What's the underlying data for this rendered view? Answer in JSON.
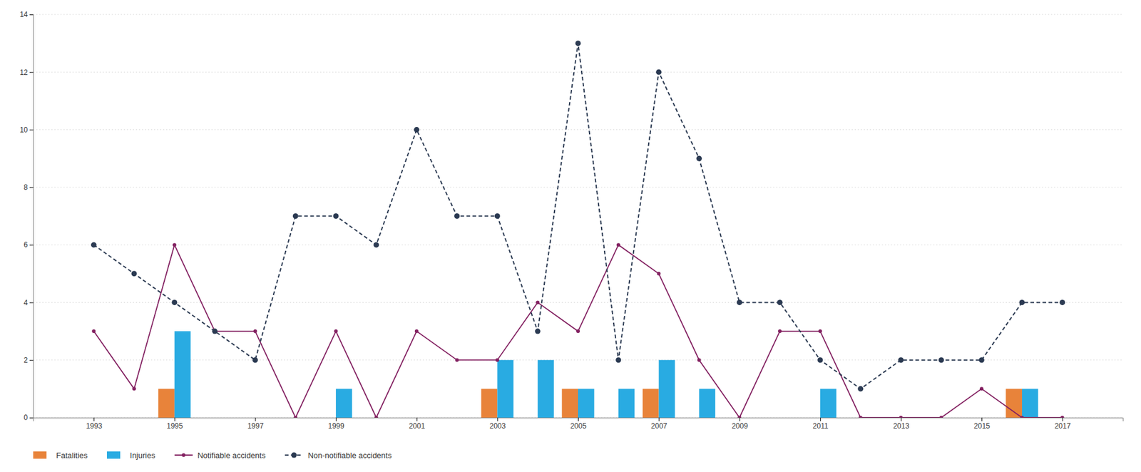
{
  "chart_data": {
    "type": "bar",
    "x": [
      1993,
      1994,
      1995,
      1996,
      1997,
      1998,
      1999,
      2000,
      2001,
      2002,
      2003,
      2004,
      2005,
      2006,
      2007,
      2008,
      2009,
      2010,
      2011,
      2012,
      2013,
      2014,
      2015,
      2016,
      2017
    ],
    "series": [
      {
        "name": "Fatalities",
        "type": "bar",
        "color": "#E8833A",
        "values": [
          0,
          0,
          1,
          0,
          0,
          0,
          0,
          0,
          0,
          0,
          1,
          0,
          1,
          0,
          1,
          0,
          0,
          0,
          0,
          0,
          0,
          0,
          0,
          1,
          0
        ]
      },
      {
        "name": "Injuries",
        "type": "bar",
        "color": "#29ABE2",
        "values": [
          0,
          0,
          3,
          0,
          0,
          0,
          1,
          0,
          0,
          0,
          2,
          2,
          1,
          1,
          2,
          1,
          0,
          0,
          1,
          0,
          0,
          0,
          0,
          1,
          0
        ]
      },
      {
        "name": "Notifiable accidents",
        "type": "line",
        "color": "#832161",
        "marker": "circle",
        "line_style": "solid",
        "values": [
          3,
          1,
          6,
          3,
          3,
          0,
          3,
          0,
          3,
          2,
          2,
          4,
          3,
          6,
          5,
          2,
          0,
          3,
          3,
          0,
          0,
          0,
          1,
          0,
          0
        ]
      },
      {
        "name": "Non-notifiable accidents",
        "type": "line",
        "color": "#2B3A52",
        "marker": "circle",
        "line_style": "dashed",
        "values": [
          6,
          5,
          4,
          3,
          2,
          7,
          7,
          6,
          10,
          7,
          7,
          3,
          13,
          2,
          12,
          9,
          4,
          4,
          2,
          1,
          2,
          2,
          2,
          4,
          4
        ]
      }
    ],
    "xlim": [
      1991.5,
      2018.5
    ],
    "xticks": [
      1993,
      1995,
      1997,
      1999,
      2001,
      2003,
      2005,
      2007,
      2009,
      2011,
      2013,
      2015,
      2017
    ],
    "ylim": [
      0,
      14
    ],
    "yticks": [
      0,
      2,
      4,
      6,
      8,
      10,
      12,
      14
    ],
    "grid": "y",
    "legend": "bottom"
  }
}
